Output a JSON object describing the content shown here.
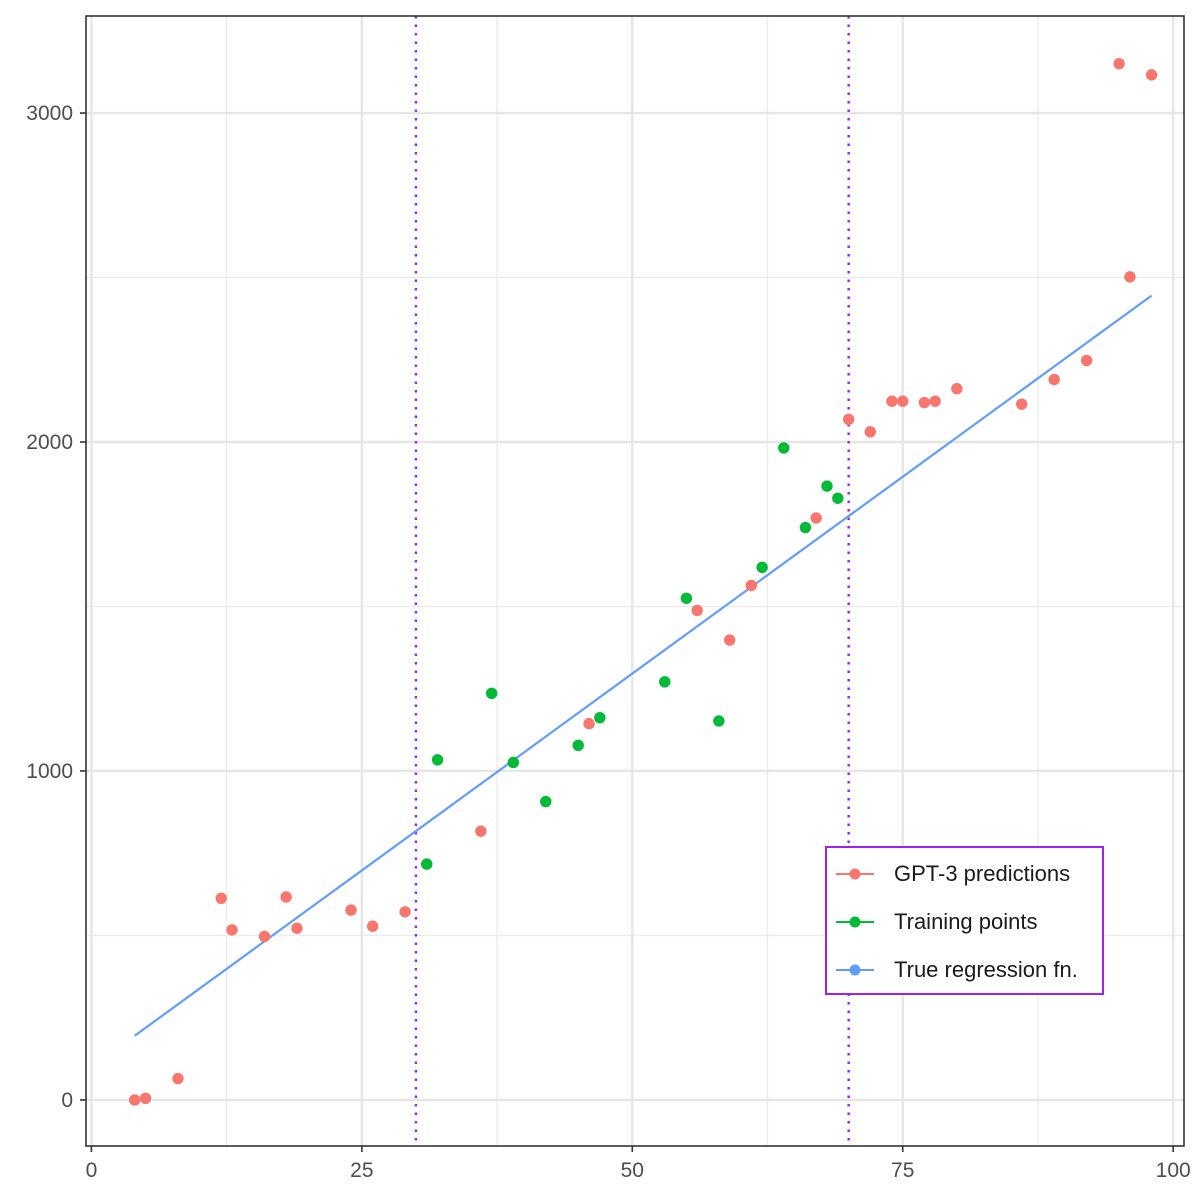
{
  "chart_data": {
    "type": "scatter",
    "title": "",
    "xlabel": "",
    "ylabel": "",
    "xlim": [
      -0.5,
      101
    ],
    "ylim": [
      -140,
      3295
    ],
    "x_ticks": [
      {
        "value": 0,
        "label": "0"
      },
      {
        "value": 25,
        "label": "25"
      },
      {
        "value": 50,
        "label": "50"
      },
      {
        "value": 75,
        "label": "75"
      },
      {
        "value": 100,
        "label": "100"
      }
    ],
    "x_minor_ticks": [
      12.5,
      37.5,
      62.5,
      87.5
    ],
    "y_ticks": [
      {
        "value": 0,
        "label": "0"
      },
      {
        "value": 1000,
        "label": "1000"
      },
      {
        "value": 2000,
        "label": "2000"
      },
      {
        "value": 3000,
        "label": "3000"
      }
    ],
    "y_minor_ticks": [
      500,
      1500,
      2500
    ],
    "grid": true,
    "vlines": [
      {
        "x": 30,
        "color": "#a020f0",
        "style": "dotted"
      },
      {
        "x": 70,
        "color": "#a020f0",
        "style": "dotted"
      }
    ],
    "legend": {
      "position": "bottom-right",
      "border_color": "#a020f0",
      "entries": [
        {
          "label": "GPT-3 predictions",
          "color": "#f8766d"
        },
        {
          "label": "Training points",
          "color": "#00ba38"
        },
        {
          "label": "True regression fn.",
          "color": "#619cff"
        }
      ]
    },
    "series": [
      {
        "name": "GPT-3 predictions",
        "color": "#f8766d",
        "kind": "points",
        "points": [
          [
            4,
            0
          ],
          [
            5,
            5
          ],
          [
            8,
            65
          ],
          [
            12,
            613
          ],
          [
            13,
            517
          ],
          [
            16,
            497
          ],
          [
            18,
            617
          ],
          [
            19,
            522
          ],
          [
            24,
            577
          ],
          [
            26,
            528
          ],
          [
            29,
            572
          ],
          [
            36,
            817
          ],
          [
            46,
            1144
          ],
          [
            56,
            1488
          ],
          [
            59,
            1398
          ],
          [
            61,
            1564
          ],
          [
            67,
            1769
          ],
          [
            70,
            2069
          ],
          [
            72,
            2031
          ],
          [
            74,
            2124
          ],
          [
            75,
            2124
          ],
          [
            77,
            2120
          ],
          [
            78,
            2124
          ],
          [
            80,
            2162
          ],
          [
            86,
            2115
          ],
          [
            89,
            2190
          ],
          [
            92,
            2248
          ],
          [
            95,
            3150
          ],
          [
            96,
            2502
          ],
          [
            98,
            3116
          ]
        ]
      },
      {
        "name": "Training points",
        "color": "#00ba38",
        "kind": "points",
        "points": [
          [
            31,
            717
          ],
          [
            32,
            1034
          ],
          [
            37,
            1236
          ],
          [
            39,
            1026
          ],
          [
            42,
            907
          ],
          [
            45,
            1078
          ],
          [
            47,
            1162
          ],
          [
            53,
            1271
          ],
          [
            55,
            1525
          ],
          [
            58,
            1152
          ],
          [
            62,
            1619
          ],
          [
            64,
            1982
          ],
          [
            66,
            1740
          ],
          [
            68,
            1866
          ],
          [
            69,
            1829
          ]
        ]
      },
      {
        "name": "True regression fn.",
        "color": "#619cff",
        "kind": "line",
        "points": [
          [
            4,
            195
          ],
          [
            98,
            2445
          ]
        ]
      }
    ]
  }
}
